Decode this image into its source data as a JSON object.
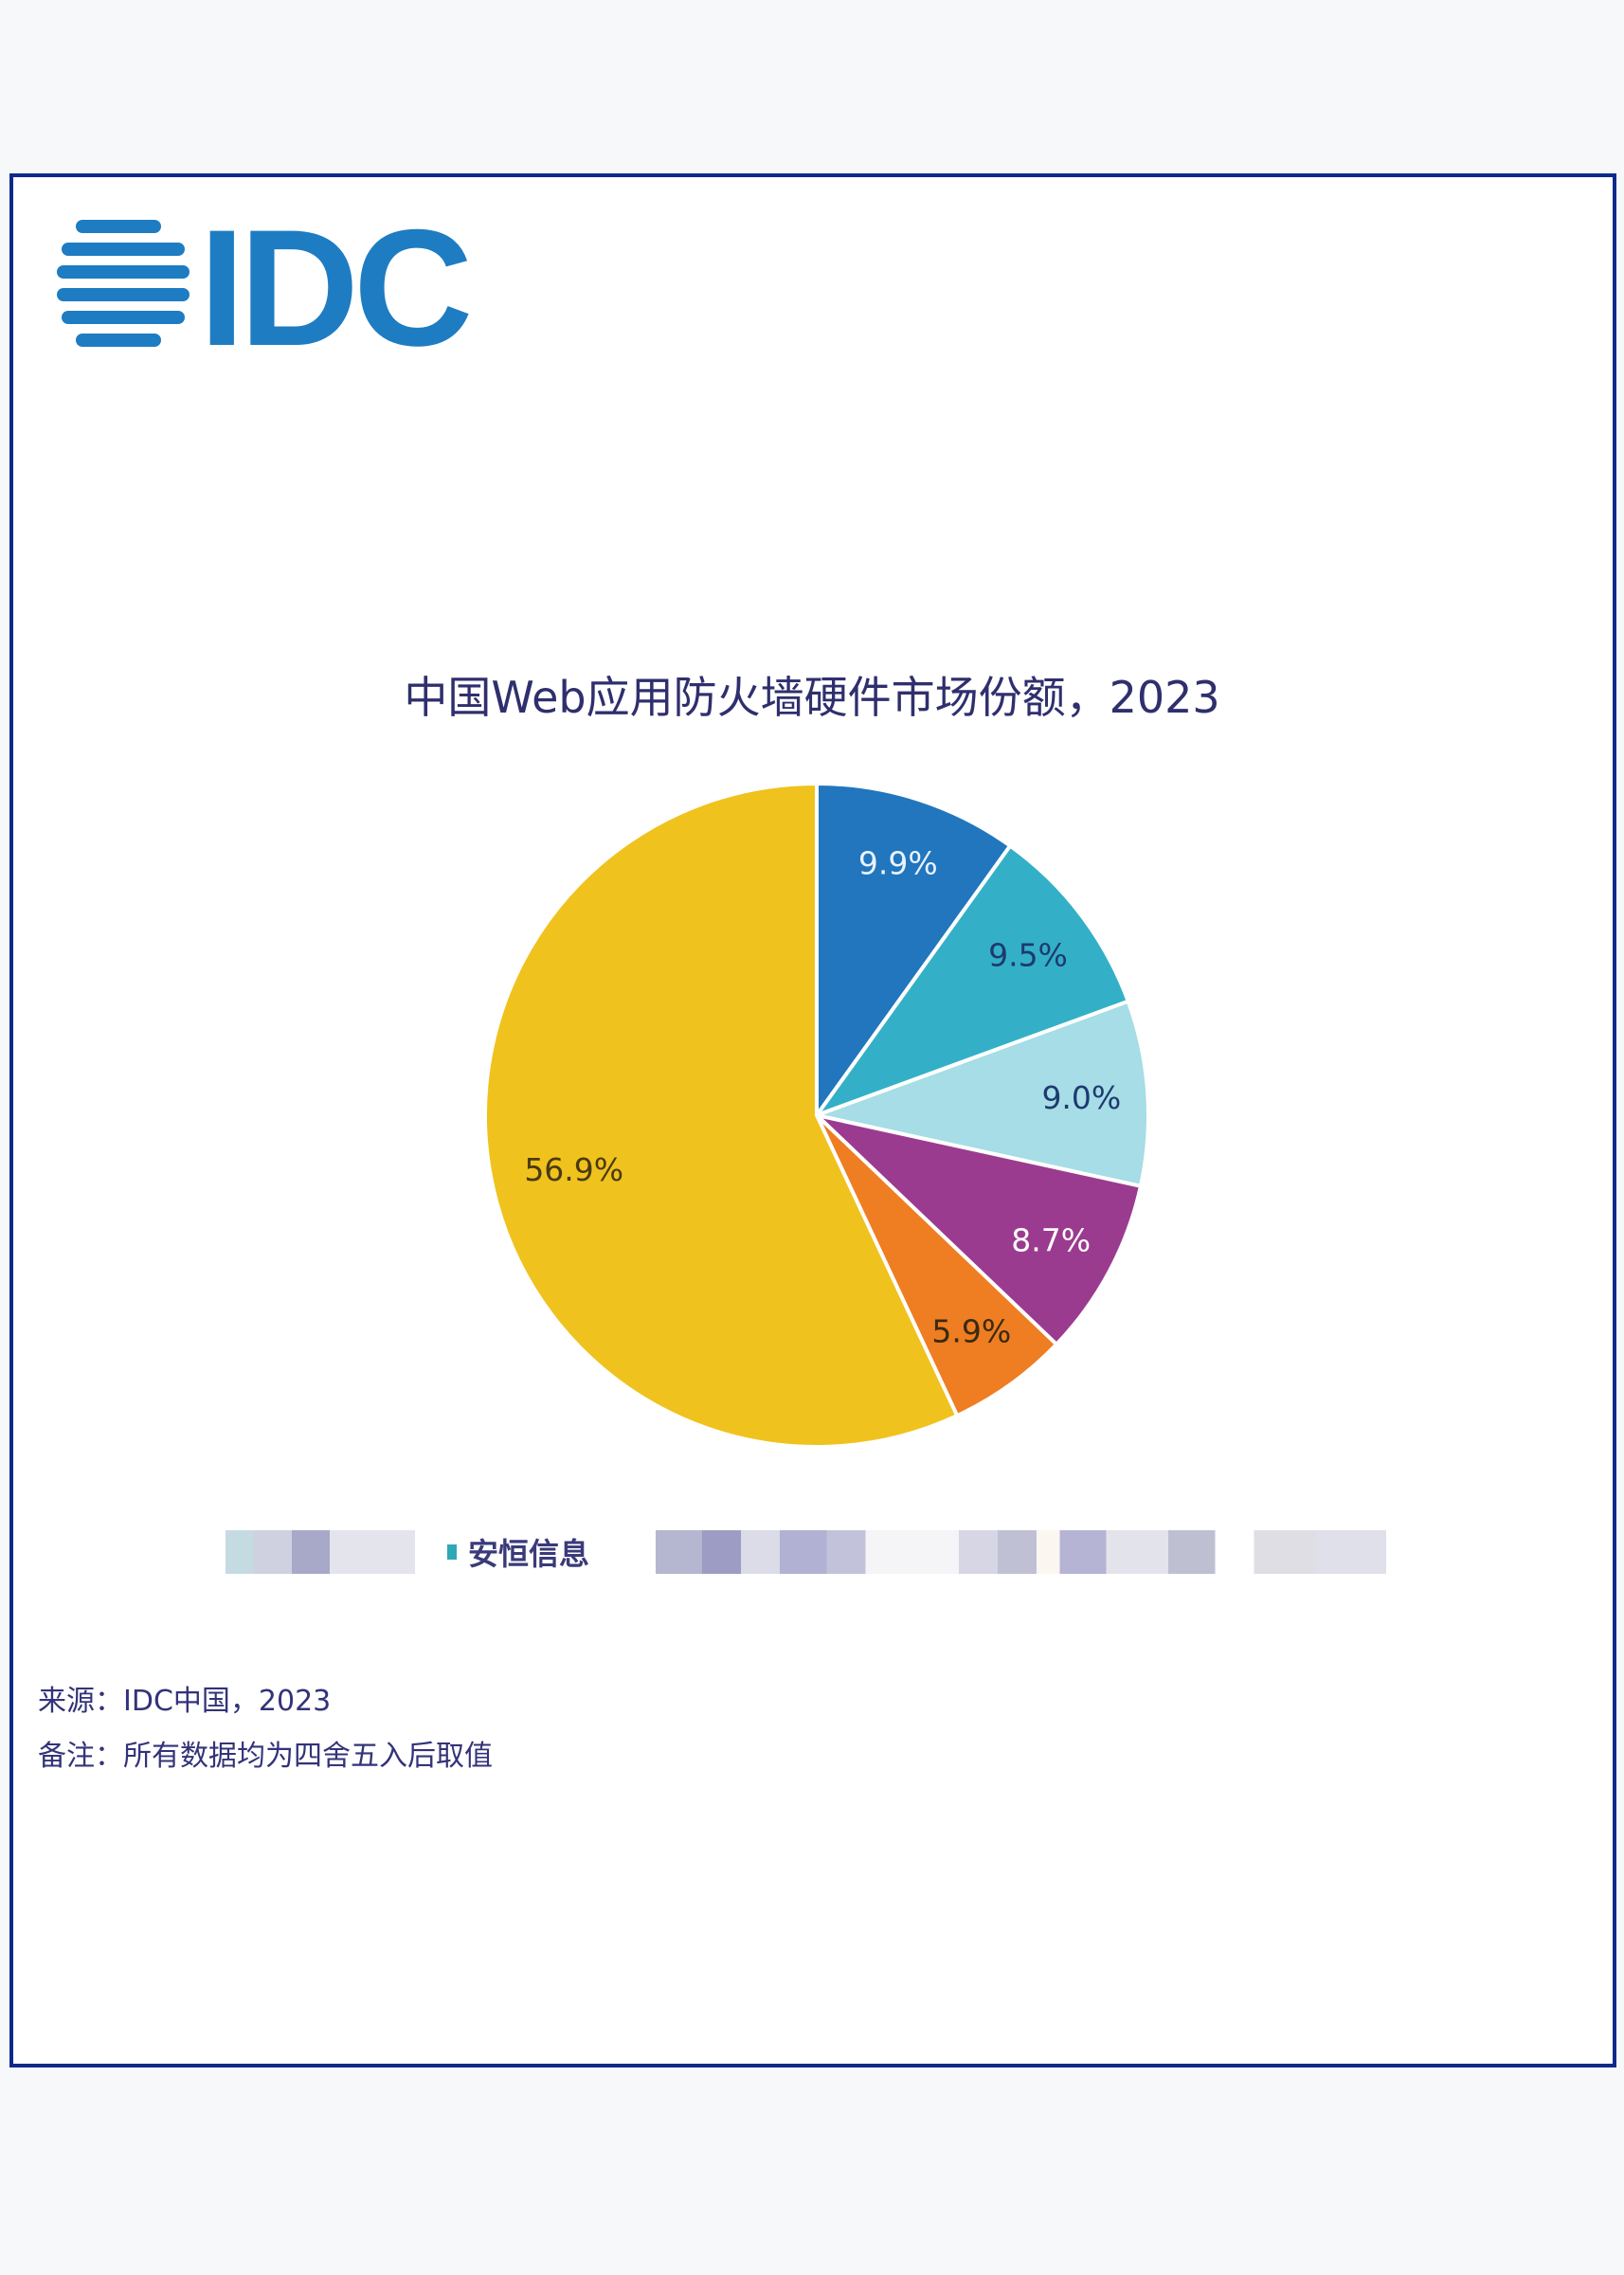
{
  "logo": {
    "text": "IDC",
    "color": "#1e7cc2"
  },
  "chart_data": {
    "type": "pie",
    "title": "中国Web应用防火墙硬件市场份额，2023",
    "slices": [
      {
        "value": 9.9,
        "label": "9.9%",
        "color": "#2176bd"
      },
      {
        "value": 9.5,
        "label": "9.5%",
        "color": "#33b0c7"
      },
      {
        "value": 9.0,
        "label": "9.0%",
        "color": "#a6dde6"
      },
      {
        "value": 8.7,
        "label": "8.7%",
        "color": "#9b3b8f"
      },
      {
        "value": 5.9,
        "label": "5.9%",
        "color": "#ef7d22"
      },
      {
        "value": 56.9,
        "label": "56.9%",
        "color": "#f0c21e"
      }
    ],
    "start": "12 o'clock",
    "direction": "clockwise",
    "legend": {
      "placement": "bottom",
      "visible_entries": [
        {
          "name": "安恒信息",
          "color": "#2fa8b5"
        }
      ],
      "other_entries": "pixelated/obscured"
    }
  },
  "footer": {
    "source": "来源：IDC中国，2023",
    "note": "备注：所有数据均为四舍五入后取值"
  }
}
